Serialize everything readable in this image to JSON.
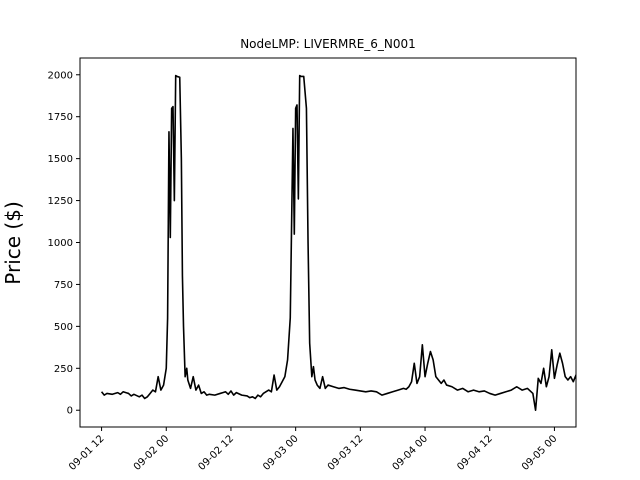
{
  "chart_data": {
    "type": "line",
    "title": "NodeLMP: LIVERMRE_6_N001",
    "xlabel": "",
    "ylabel": "Price ($)",
    "x_unit": "hours since 09-01 00",
    "xlim": [
      8,
      100
    ],
    "ylim": [
      -100,
      2100
    ],
    "grid": false,
    "yticks": [
      0,
      250,
      500,
      750,
      1000,
      1250,
      1500,
      1750,
      2000
    ],
    "xticks": [
      {
        "value": 12,
        "label": "09-01 12"
      },
      {
        "value": 24,
        "label": "09-02 00"
      },
      {
        "value": 36,
        "label": "09-02 12"
      },
      {
        "value": 48,
        "label": "09-03 00"
      },
      {
        "value": 60,
        "label": "09-03 12"
      },
      {
        "value": 72,
        "label": "09-04 00"
      },
      {
        "value": 84,
        "label": "09-04 12"
      },
      {
        "value": 96,
        "label": "09-05 00"
      }
    ],
    "series": [
      {
        "name": "",
        "color": "#000000",
        "points": [
          [
            12,
            110
          ],
          [
            12.5,
            90
          ],
          [
            13,
            100
          ],
          [
            14,
            95
          ],
          [
            15,
            105
          ],
          [
            15.5,
            95
          ],
          [
            16,
            110
          ],
          [
            17,
            100
          ],
          [
            17.5,
            85
          ],
          [
            18,
            95
          ],
          [
            19,
            80
          ],
          [
            19.5,
            90
          ],
          [
            20,
            70
          ],
          [
            20.5,
            80
          ],
          [
            21,
            100
          ],
          [
            21.5,
            120
          ],
          [
            22,
            110
          ],
          [
            22.5,
            200
          ],
          [
            23,
            120
          ],
          [
            23.5,
            150
          ],
          [
            24,
            250
          ],
          [
            24.25,
            550
          ],
          [
            24.5,
            1660
          ],
          [
            24.75,
            1030
          ],
          [
            25,
            1800
          ],
          [
            25.25,
            1810
          ],
          [
            25.5,
            1250
          ],
          [
            25.75,
            1995
          ],
          [
            26,
            1990
          ],
          [
            26.5,
            1985
          ],
          [
            26.8,
            1500
          ],
          [
            27,
            800
          ],
          [
            27.2,
            500
          ],
          [
            27.5,
            200
          ],
          [
            27.8,
            250
          ],
          [
            28,
            180
          ],
          [
            28.5,
            130
          ],
          [
            29,
            200
          ],
          [
            29.5,
            120
          ],
          [
            30,
            150
          ],
          [
            30.5,
            100
          ],
          [
            31,
            110
          ],
          [
            31.5,
            90
          ],
          [
            32,
            95
          ],
          [
            33,
            90
          ],
          [
            34,
            100
          ],
          [
            34.5,
            105
          ],
          [
            35,
            110
          ],
          [
            35.5,
            95
          ],
          [
            36,
            115
          ],
          [
            36.5,
            90
          ],
          [
            37,
            105
          ],
          [
            38,
            90
          ],
          [
            39,
            85
          ],
          [
            39.5,
            75
          ],
          [
            40,
            80
          ],
          [
            40.5,
            70
          ],
          [
            41,
            90
          ],
          [
            41.5,
            80
          ],
          [
            42,
            100
          ],
          [
            43,
            120
          ],
          [
            43.5,
            110
          ],
          [
            44,
            210
          ],
          [
            44.5,
            120
          ],
          [
            45,
            140
          ],
          [
            46,
            200
          ],
          [
            46.5,
            300
          ],
          [
            47,
            550
          ],
          [
            47.5,
            1680
          ],
          [
            47.75,
            1050
          ],
          [
            48,
            1800
          ],
          [
            48.25,
            1820
          ],
          [
            48.5,
            1260
          ],
          [
            48.75,
            1995
          ],
          [
            49,
            1990
          ],
          [
            49.5,
            1990
          ],
          [
            50,
            1800
          ],
          [
            50.3,
            1000
          ],
          [
            50.6,
            400
          ],
          [
            51,
            200
          ],
          [
            51.3,
            260
          ],
          [
            51.6,
            180
          ],
          [
            52,
            150
          ],
          [
            52.5,
            130
          ],
          [
            53,
            200
          ],
          [
            53.5,
            130
          ],
          [
            54,
            150
          ],
          [
            55,
            140
          ],
          [
            56,
            130
          ],
          [
            57,
            135
          ],
          [
            58,
            125
          ],
          [
            59,
            120
          ],
          [
            60,
            115
          ],
          [
            61,
            110
          ],
          [
            62,
            115
          ],
          [
            63,
            110
          ],
          [
            64,
            90
          ],
          [
            65,
            100
          ],
          [
            66,
            110
          ],
          [
            67,
            120
          ],
          [
            68,
            130
          ],
          [
            68.5,
            125
          ],
          [
            69,
            140
          ],
          [
            69.5,
            170
          ],
          [
            70,
            280
          ],
          [
            70.5,
            160
          ],
          [
            71,
            200
          ],
          [
            71.5,
            390
          ],
          [
            72,
            200
          ],
          [
            72.5,
            280
          ],
          [
            73,
            350
          ],
          [
            73.5,
            300
          ],
          [
            74,
            200
          ],
          [
            74.5,
            180
          ],
          [
            75,
            160
          ],
          [
            75.5,
            180
          ],
          [
            76,
            150
          ],
          [
            77,
            140
          ],
          [
            78,
            120
          ],
          [
            79,
            130
          ],
          [
            80,
            110
          ],
          [
            81,
            120
          ],
          [
            82,
            110
          ],
          [
            83,
            115
          ],
          [
            84,
            100
          ],
          [
            85,
            90
          ],
          [
            86,
            100
          ],
          [
            87,
            110
          ],
          [
            88,
            120
          ],
          [
            89,
            140
          ],
          [
            90,
            120
          ],
          [
            91,
            130
          ],
          [
            92,
            100
          ],
          [
            92.5,
            0
          ],
          [
            93,
            190
          ],
          [
            93.5,
            160
          ],
          [
            94,
            250
          ],
          [
            94.5,
            140
          ],
          [
            95,
            200
          ],
          [
            95.5,
            360
          ],
          [
            96,
            190
          ],
          [
            96.5,
            270
          ],
          [
            97,
            340
          ],
          [
            97.5,
            280
          ],
          [
            98,
            200
          ],
          [
            98.5,
            180
          ],
          [
            99,
            200
          ],
          [
            99.5,
            170
          ],
          [
            100,
            210
          ],
          [
            100.5,
            180
          ],
          [
            101,
            130
          ]
        ]
      }
    ]
  }
}
